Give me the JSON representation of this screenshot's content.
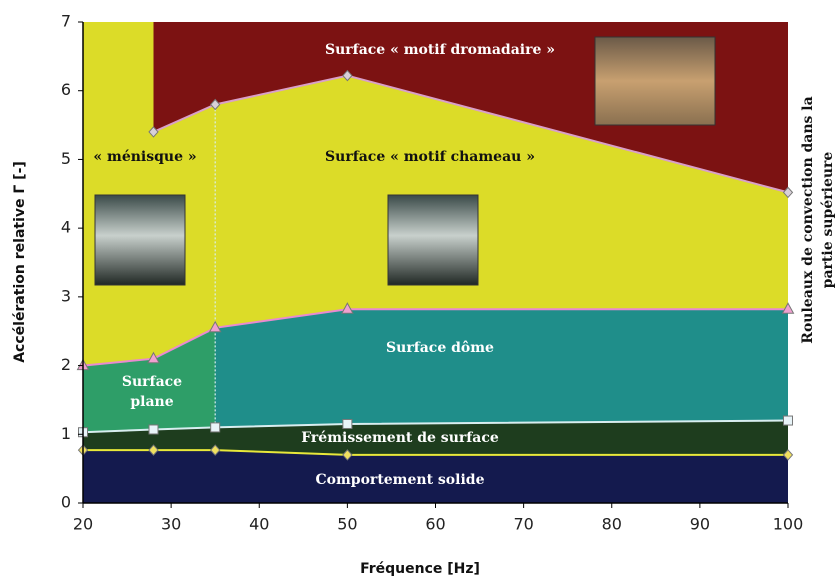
{
  "chart_data": {
    "type": "area",
    "xlabel": "Fréquence [Hz]",
    "ylabel": "Accélération relative Γ [-]",
    "xlim": [
      20,
      100
    ],
    "xticks": [
      20,
      30,
      40,
      50,
      60,
      70,
      80,
      90,
      100
    ],
    "ylim": [
      0,
      7
    ],
    "yticks": [
      0,
      1,
      2,
      3,
      4,
      5,
      6,
      7
    ],
    "background_color": "#dcdc28",
    "series": [
      {
        "x": [
          20,
          28,
          35,
          50,
          100
        ],
        "values": [
          0.77,
          0.77,
          0.77,
          0.7,
          0.7
        ],
        "color": "#e8e83a",
        "marker": "diamond",
        "marker_color": "#f0e060",
        "fill_below": "#141a4e"
      },
      {
        "x": [
          20,
          28,
          35,
          50,
          100
        ],
        "values": [
          1.03,
          1.07,
          1.1,
          1.15,
          1.2
        ],
        "color": "#d8eef0",
        "marker": "square",
        "marker_color": "#e8f4f8",
        "fill_below": "#1e3d1e"
      },
      {
        "x": [
          20,
          28,
          35,
          50,
          100
        ],
        "values": [
          2.0,
          2.1,
          2.55,
          2.82,
          2.82
        ],
        "color": "#e98ad0",
        "marker": "triangle",
        "marker_color": "#f0a0d0",
        "fill_below": "#1f8e8a",
        "fill_below_left": "#2e9e68"
      },
      {
        "x": [
          28,
          35,
          50,
          100
        ],
        "values": [
          5.4,
          5.8,
          6.22,
          4.52
        ],
        "color": "#d9a0c8",
        "marker": "diamond",
        "marker_color": "#d8d0d8",
        "fill_above": "#7c1212"
      }
    ],
    "regions": [
      {
        "label": [
          "Surface « motif dromadaire »"
        ],
        "color": "#ffffff"
      },
      {
        "label": [
          "Surface « motif chameau »"
        ],
        "color": "#111111"
      },
      {
        "label": [
          "« ménisque »"
        ],
        "color": "#111111"
      },
      {
        "label": [
          "Surface",
          "plane"
        ],
        "color": "#ffffff"
      },
      {
        "label": [
          "Surface dôme"
        ],
        "color": "#ffffff"
      },
      {
        "label": [
          "Frémissement de surface"
        ],
        "color": "#ffffff"
      },
      {
        "label": [
          "Comportement solide"
        ],
        "color": "#ffffff"
      }
    ],
    "side_note": [
      "Rouleaux de convection dans la",
      "partie supérieure"
    ]
  }
}
